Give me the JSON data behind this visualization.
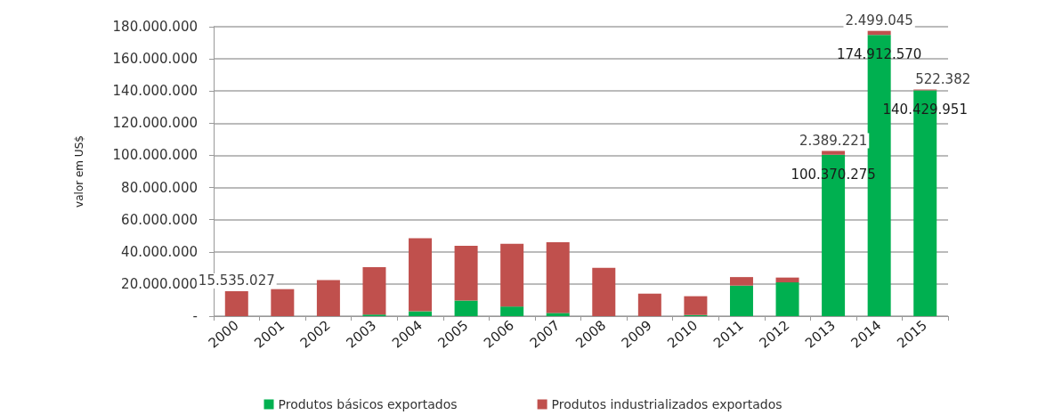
{
  "chart_data": {
    "type": "bar",
    "stacked": true,
    "ylabel": "valor em US$",
    "categories": [
      "2000",
      "2001",
      "2002",
      "2003",
      "2004",
      "2005",
      "2006",
      "2007",
      "2008",
      "2009",
      "2010",
      "2011",
      "2012",
      "2013",
      "2014",
      "2015"
    ],
    "series": [
      {
        "name": "Produtos básicos exportados",
        "color": "#00b050",
        "values": [
          0,
          0,
          0,
          1000000,
          3000000,
          9700000,
          6000000,
          2000000,
          0,
          0,
          700000,
          19000000,
          21000000,
          100370275,
          174912570,
          140429951
        ],
        "value_labels": [
          null,
          null,
          null,
          null,
          null,
          null,
          null,
          null,
          null,
          null,
          null,
          null,
          null,
          "100.370.275",
          "174.912.570",
          "140.429.951"
        ]
      },
      {
        "name": "Produtos industrializados exportados",
        "color": "#c0504d",
        "values": [
          15535027,
          16800000,
          22500000,
          29500000,
          45500000,
          34000000,
          39000000,
          44000000,
          30000000,
          14000000,
          11700000,
          5300000,
          3000000,
          2389221,
          2499045,
          522382
        ],
        "value_labels": [
          "15.535.027",
          null,
          null,
          null,
          null,
          null,
          null,
          null,
          null,
          null,
          null,
          null,
          null,
          "2.389.221",
          "2.499.045",
          "522.382"
        ]
      }
    ],
    "ylim": [
      0,
      180000000
    ],
    "yticks": [
      {
        "value": 0,
        "label": "-"
      },
      {
        "value": 20000000,
        "label": "20.000.000"
      },
      {
        "value": 40000000,
        "label": "40.000.000"
      },
      {
        "value": 60000000,
        "label": "60.000.000"
      },
      {
        "value": 80000000,
        "label": "80.000.000"
      },
      {
        "value": 100000000,
        "label": "100.000.000"
      },
      {
        "value": 120000000,
        "label": "120.000.000"
      },
      {
        "value": 140000000,
        "label": "140.000.000"
      },
      {
        "value": 160000000,
        "label": "160.000.000"
      },
      {
        "value": 180000000,
        "label": "180.000.000"
      }
    ],
    "grid": "y",
    "legend": "bottom"
  }
}
